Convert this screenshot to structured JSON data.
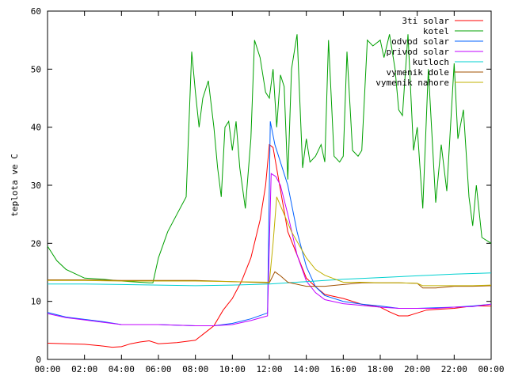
{
  "chart_data": {
    "type": "line",
    "title": "",
    "xlabel": "",
    "ylabel": "teplota ve C",
    "xlim": [
      0,
      24
    ],
    "ylim": [
      0,
      60
    ],
    "x_ticks": [
      "00:00",
      "02:00",
      "04:00",
      "06:00",
      "08:00",
      "10:00",
      "12:00",
      "14:00",
      "16:00",
      "18:00",
      "20:00",
      "22:00",
      "00:00"
    ],
    "y_ticks": [
      0,
      10,
      20,
      30,
      40,
      50,
      60
    ],
    "grid": false,
    "legend_position": "top-right",
    "series": [
      {
        "name": "3ti solar",
        "color": "#ff0000",
        "x": [
          0,
          1,
          2,
          3,
          3.5,
          4,
          4.5,
          5,
          5.5,
          6,
          7,
          8,
          9,
          9.5,
          10,
          10.5,
          11,
          11.5,
          11.8,
          12,
          12.2,
          12.5,
          13,
          14,
          14.5,
          15,
          16,
          17,
          18,
          18.5,
          19,
          19.5,
          20,
          20.5,
          21,
          22,
          23,
          24
        ],
        "y": [
          2.8,
          2.7,
          2.6,
          2.3,
          2.1,
          2.2,
          2.7,
          3.0,
          3.2,
          2.7,
          2.9,
          3.3,
          5.8,
          8.5,
          10.5,
          13.5,
          17.5,
          24,
          30,
          37,
          36.5,
          31,
          22,
          14,
          12.5,
          11.2,
          10.5,
          9.5,
          9,
          8.2,
          7.5,
          7.5,
          8,
          8.5,
          8.6,
          8.8,
          9.2,
          9.2
        ]
      },
      {
        "name": "kotel",
        "color": "#00a000",
        "x": [
          0,
          0.5,
          1,
          2,
          3,
          4,
          5,
          5.5,
          5.7,
          6,
          6.5,
          7,
          7.5,
          7.8,
          8,
          8.2,
          8.4,
          8.7,
          9,
          9.2,
          9.4,
          9.6,
          9.8,
          10,
          10.2,
          10.4,
          10.7,
          11,
          11.2,
          11.5,
          11.8,
          12,
          12.2,
          12.4,
          12.6,
          12.8,
          13,
          13.2,
          13.5,
          13.8,
          14,
          14.2,
          14.5,
          14.8,
          15,
          15.2,
          15.5,
          15.8,
          16,
          16.2,
          16.5,
          16.8,
          17,
          17.3,
          17.6,
          18,
          18.2,
          18.5,
          18.8,
          19,
          19.2,
          19.5,
          19.8,
          20,
          20.3,
          20.6,
          21,
          21.3,
          21.6,
          22,
          22.2,
          22.5,
          22.8,
          23,
          23.2,
          23.5,
          24
        ],
        "y": [
          19.5,
          17,
          15.5,
          14,
          13.8,
          13.5,
          13.3,
          13.2,
          13.2,
          17.5,
          22,
          25,
          28,
          53,
          46,
          40,
          45,
          48,
          40,
          33,
          28,
          40,
          41,
          36,
          41,
          33,
          26,
          38,
          55,
          52,
          46,
          45,
          50,
          40,
          49,
          47,
          31,
          50,
          56,
          33,
          38,
          34,
          35,
          37,
          34,
          55,
          35,
          34,
          35,
          53,
          36,
          35,
          36,
          55,
          54,
          55,
          52,
          56,
          50,
          43,
          42,
          56,
          36,
          40,
          26,
          50,
          27,
          37,
          29,
          51,
          38,
          43,
          28,
          23,
          30,
          21,
          20
        ]
      },
      {
        "name": "odvod solar",
        "color": "#0060ff",
        "x": [
          0,
          1,
          2,
          3,
          4,
          5,
          6,
          7,
          8,
          9,
          10,
          11,
          11.9,
          12.05,
          12.3,
          12.6,
          13,
          13.5,
          14,
          14.5,
          15,
          16,
          17,
          18,
          19,
          20,
          21,
          22,
          23,
          24
        ],
        "y": [
          8.1,
          7.3,
          6.9,
          6.5,
          6.0,
          6.0,
          6.0,
          5.9,
          5.8,
          5.8,
          6.2,
          7.0,
          8.0,
          41,
          37,
          34,
          30,
          22,
          16,
          12.5,
          11.0,
          10.0,
          9.5,
          9.2,
          8.8,
          8.8,
          8.9,
          9.0,
          9.2,
          9.5
        ]
      },
      {
        "name": "privod solar",
        "color": "#c000ff",
        "x": [
          0,
          1,
          2,
          3,
          4,
          5,
          6,
          7,
          8,
          9,
          10,
          11,
          11.9,
          12.1,
          12.35,
          12.6,
          13,
          13.5,
          14,
          14.5,
          15,
          16,
          17,
          18,
          19,
          20,
          21,
          22,
          23,
          24
        ],
        "y": [
          7.9,
          7.2,
          6.8,
          6.4,
          6.0,
          6.0,
          6.0,
          5.9,
          5.8,
          5.8,
          6.0,
          6.7,
          7.5,
          32,
          31.5,
          30,
          25,
          18,
          13.5,
          11.5,
          10.3,
          9.6,
          9.3,
          9.0,
          8.8,
          8.8,
          8.8,
          9.0,
          9.1,
          9.5
        ]
      },
      {
        "name": "kutloch",
        "color": "#00d0d0",
        "x": [
          0,
          2,
          4,
          6,
          8,
          10,
          12,
          14,
          16,
          18,
          20,
          22,
          24
        ],
        "y": [
          13.0,
          13.0,
          12.9,
          12.8,
          12.7,
          12.8,
          13.0,
          13.4,
          13.8,
          14.1,
          14.4,
          14.7,
          14.9
        ]
      },
      {
        "name": "vymenik dole",
        "color": "#a05000",
        "x": [
          0,
          2,
          4,
          6,
          8,
          10,
          11,
          12,
          12.3,
          12.6,
          13,
          14,
          15,
          16,
          17,
          18,
          19,
          20,
          20.3,
          21,
          22,
          23,
          24
        ],
        "y": [
          13.7,
          13.7,
          13.6,
          13.6,
          13.6,
          13.4,
          13.3,
          13.2,
          15.1,
          14.4,
          13.3,
          12.6,
          12.6,
          12.9,
          13.2,
          13.2,
          13.2,
          13.1,
          12.3,
          12.3,
          12.6,
          12.6,
          12.7
        ]
      },
      {
        "name": "vymenik nahore",
        "color": "#c0b000",
        "x": [
          0,
          2,
          4,
          6,
          8,
          10,
          12,
          12.2,
          12.4,
          12.8,
          13.2,
          14,
          14.5,
          15,
          16,
          17,
          18,
          19,
          20,
          20.3,
          21,
          22,
          23,
          24
        ],
        "y": [
          13.6,
          13.6,
          13.5,
          13.5,
          13.5,
          13.4,
          13.3,
          20,
          28,
          25,
          22,
          17.5,
          15.5,
          14.5,
          13.3,
          13.3,
          13.2,
          13.2,
          13.1,
          12.7,
          12.7,
          12.7,
          12.7,
          12.8
        ]
      }
    ]
  }
}
